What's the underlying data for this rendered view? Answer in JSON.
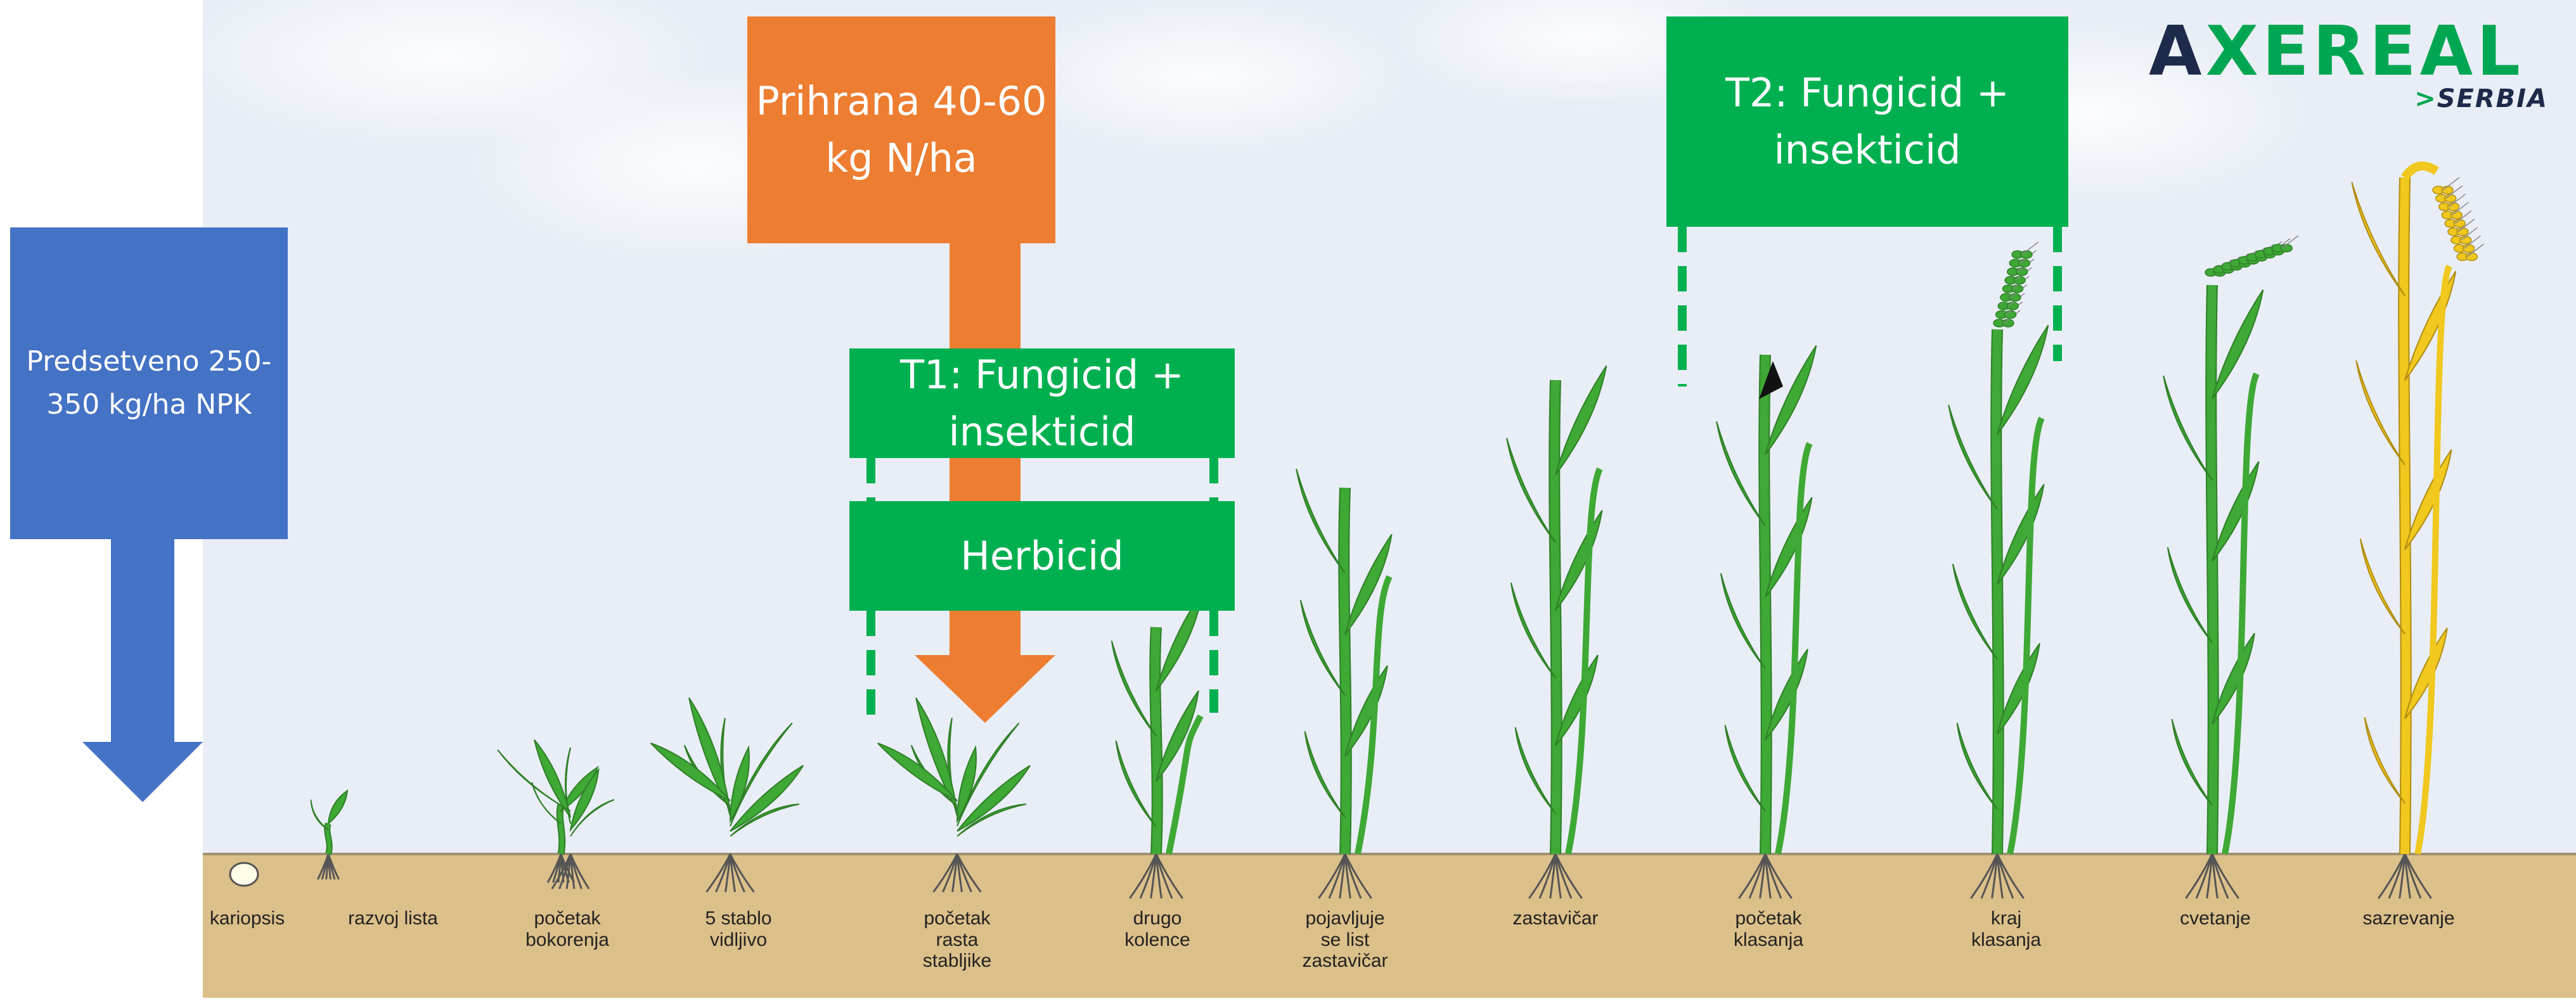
{
  "colors": {
    "sky": "#e9eef6",
    "soil": "#dcc08a",
    "soil_line": "#a09070",
    "blue": "#4472c4",
    "orange": "#ed7d31",
    "green": "#00b050",
    "plant": "#3ea935",
    "plant_dark": "#2f7f28",
    "mature": "#f0c81e",
    "mature_dark": "#b08c10",
    "root": "#555555"
  },
  "logo": {
    "brand_prefix": "A",
    "brand_mark": "X",
    "brand_suffix": "EREAL",
    "sub_mark": ">",
    "sub": "SERBIA"
  },
  "boxes": {
    "presowing": "Predsetveno 250-\n350 kg/ha NPK",
    "topdress": "Prihrana 40-60\nkg N/ha",
    "t1": "T1: Fungicid +\ninsekticid",
    "herbicide": "Herbicid",
    "t2": "T2: Fungicid +\ninsekticid"
  },
  "stages": [
    {
      "label": "kariopsis",
      "type": "seed"
    },
    {
      "label": "razvoj lista",
      "type": "seedling"
    },
    {
      "label": "razvoj lista",
      "type": "seedling2"
    },
    {
      "label": "početak\nbokorenja",
      "type": "tiller"
    },
    {
      "label": "5 stablo\nvidljivo",
      "type": "bush"
    },
    {
      "label": "početak\nrasta\nstabljike",
      "type": "bush2"
    },
    {
      "label": "drugo\nkolence",
      "type": "stem"
    },
    {
      "label": "pojavljuje\nse list\nzastavičar",
      "type": "tall"
    },
    {
      "label": "zastavičar",
      "type": "flag"
    },
    {
      "label": "početak\nklasanja",
      "type": "heading"
    },
    {
      "label": "kraj\nklasanja",
      "type": "eared"
    },
    {
      "label": "cvetanje",
      "type": "flowering"
    },
    {
      "label": "sazrevanje",
      "type": "mature"
    }
  ]
}
